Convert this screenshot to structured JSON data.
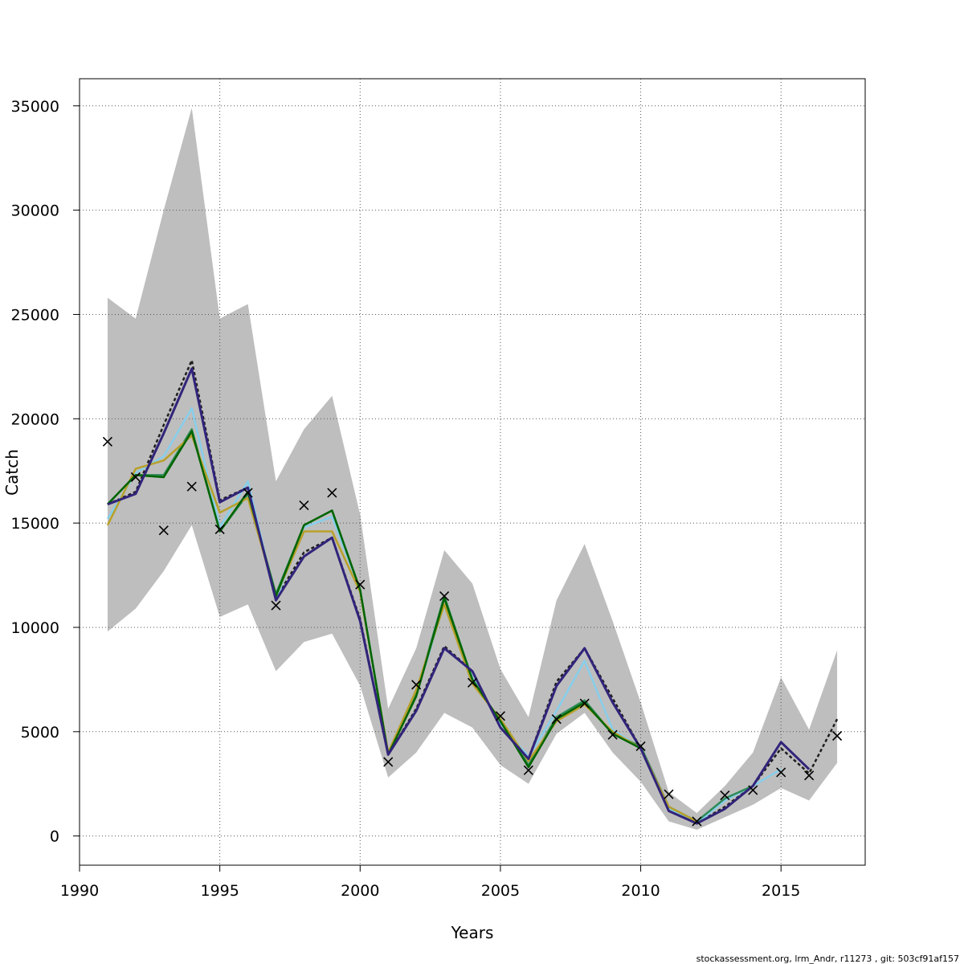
{
  "chart_data": {
    "type": "line",
    "xlabel": "Years",
    "ylabel": "Catch",
    "xlim": [
      1990,
      2018
    ],
    "ylim": [
      -1400,
      36300
    ],
    "x_ticks": [
      1990,
      1995,
      2000,
      2005,
      2010,
      2015
    ],
    "y_ticks": [
      0,
      5000,
      10000,
      15000,
      20000,
      25000,
      30000,
      35000
    ],
    "grid": true,
    "years": [
      1991,
      1992,
      1993,
      1994,
      1995,
      1996,
      1997,
      1998,
      1999,
      2000,
      2001,
      2002,
      2003,
      2004,
      2005,
      2006,
      2007,
      2008,
      2009,
      2010,
      2011,
      2012,
      2013,
      2014,
      2015,
      2016,
      2017
    ],
    "confidence_band": {
      "color": "#bebebe",
      "upper": [
        25800,
        24800,
        30000,
        34900,
        24800,
        25500,
        17000,
        19500,
        21100,
        15400,
        6100,
        9000,
        13700,
        12100,
        8000,
        5700,
        11300,
        14000,
        10300,
        6400,
        2100,
        1100,
        2400,
        4000,
        7600,
        5100,
        8900
      ],
      "lower": [
        9800,
        10900,
        12700,
        14900,
        10500,
        11100,
        7900,
        9300,
        9700,
        7200,
        2800,
        4000,
        5900,
        5200,
        3400,
        2500,
        4900,
        5900,
        4000,
        2600,
        700,
        300,
        900,
        1500,
        2300,
        1700,
        3500
      ]
    },
    "observed": {
      "marker": "x",
      "years": [
        1991,
        1992,
        1993,
        1994,
        1995,
        1996,
        1997,
        1998,
        1999,
        2000,
        2001,
        2002,
        2003,
        2004,
        2005,
        2006,
        2007,
        2008,
        2009,
        2010,
        2011,
        2012,
        2013,
        2014,
        2015,
        2016,
        2017
      ],
      "values": [
        18900,
        17200,
        14650,
        16750,
        14700,
        16450,
        11050,
        15850,
        16450,
        12050,
        3550,
        7250,
        11500,
        7350,
        5750,
        3150,
        5600,
        6350,
        4850,
        4300,
        2000,
        700,
        1950,
        2200,
        3050,
        2900,
        4800
      ]
    },
    "series": [
      {
        "color": "#1e1e1e",
        "dash": "4,3",
        "width": 2.5,
        "values": [
          15900,
          16500,
          19700,
          22800,
          16100,
          16700,
          11400,
          13600,
          14300,
          10400,
          3900,
          6100,
          9100,
          7900,
          5200,
          3700,
          7400,
          9000,
          6600,
          4200,
          1200,
          600,
          1400,
          2400,
          4200,
          3000,
          5600
        ]
      },
      {
        "color": "#87ceeb",
        "width": 2.5,
        "values": [
          15200,
          17400,
          18200,
          20500,
          14800,
          17000,
          11300,
          14800,
          15300,
          11800,
          4000,
          6800,
          11100,
          7600,
          5400,
          3800,
          6000,
          8400,
          5100,
          4200,
          1300,
          600,
          1700,
          2400,
          3200,
          null,
          null
        ]
      },
      {
        "color": "#2e8b57",
        "width": 2.5,
        "values": [
          15900,
          17300,
          17300,
          19500,
          14600,
          16400,
          11600,
          14900,
          15600,
          11800,
          3900,
          6800,
          11500,
          7500,
          5500,
          3400,
          5700,
          6500,
          4900,
          4300,
          1400,
          700,
          1800,
          2400,
          null,
          null,
          null
        ]
      },
      {
        "color": "#b8a02a",
        "width": 2.5,
        "values": [
          14900,
          17600,
          18000,
          19200,
          15500,
          16200,
          11500,
          14600,
          14600,
          11700,
          4000,
          7000,
          11100,
          7300,
          5600,
          3600,
          5500,
          6300,
          5000,
          4200,
          1400,
          700,
          null,
          null,
          null,
          null,
          null
        ]
      },
      {
        "color": "#006400",
        "width": 2.5,
        "values": [
          15900,
          17300,
          17200,
          19400,
          14600,
          16500,
          11500,
          14900,
          15600,
          11800,
          3900,
          6700,
          11400,
          7500,
          5500,
          3300,
          5600,
          6400,
          4900,
          4200,
          null,
          null,
          null,
          null,
          null,
          null,
          null
        ]
      },
      {
        "color": "#31247a",
        "width": 3,
        "values": [
          15900,
          16400,
          19300,
          22400,
          16000,
          16700,
          11300,
          13400,
          14300,
          10300,
          3900,
          6000,
          9000,
          7900,
          5200,
          3700,
          7200,
          9000,
          6400,
          4200,
          1200,
          600,
          1300,
          2400,
          4500,
          3200,
          null
        ]
      }
    ]
  },
  "footer": "stockassessment.org, lrm_Andr, r11273 , git: 503cf91af157"
}
